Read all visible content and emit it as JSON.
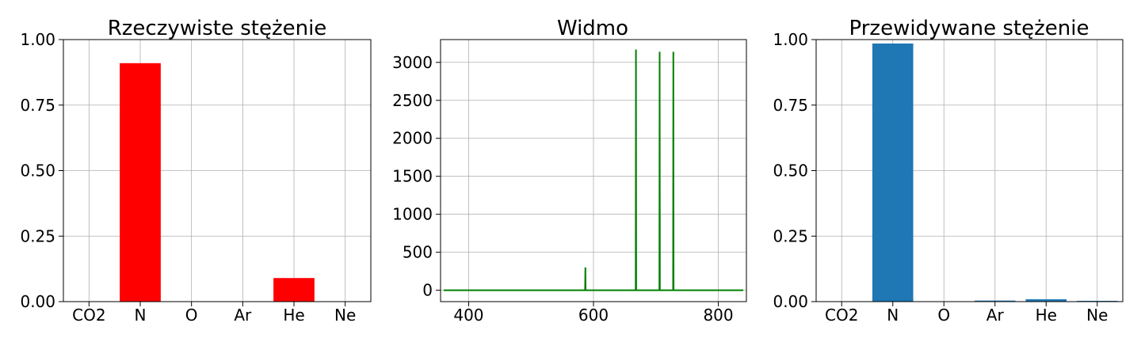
{
  "chart_data": [
    {
      "type": "bar",
      "title": "Rzeczywiste stężenie",
      "categories": [
        "CO2",
        "N",
        "O",
        "Ar",
        "He",
        "Ne"
      ],
      "values": [
        0.0,
        0.91,
        0.0,
        0.0,
        0.09,
        0.0
      ],
      "ylim": [
        0,
        1.0
      ],
      "yticks": [
        "0.00",
        "0.25",
        "0.50",
        "0.75",
        "1.00"
      ],
      "grid": true,
      "color": "#ff0000"
    },
    {
      "type": "line",
      "title": "Widmo",
      "xlim": [
        355,
        845
      ],
      "ylim": [
        -150,
        3300
      ],
      "xticks": [
        "400",
        "600",
        "800"
      ],
      "yticks": [
        "0",
        "500",
        "1000",
        "1500",
        "2000",
        "2500",
        "3000"
      ],
      "grid": true,
      "color": "#008000",
      "baseline": {
        "x_start": 360,
        "x_end": 840,
        "y": 0
      },
      "peaks": [
        {
          "x": 587,
          "y": 300
        },
        {
          "x": 668,
          "y": 3170
        },
        {
          "x": 706,
          "y": 3140
        },
        {
          "x": 728,
          "y": 3140
        }
      ]
    },
    {
      "type": "bar",
      "title": "Przewidywane stężenie",
      "categories": [
        "CO2",
        "N",
        "O",
        "Ar",
        "He",
        "Ne"
      ],
      "values": [
        0.0,
        0.985,
        0.0,
        0.004,
        0.009,
        0.003
      ],
      "ylim": [
        0,
        1.0
      ],
      "yticks": [
        "0.00",
        "0.25",
        "0.50",
        "0.75",
        "1.00"
      ],
      "grid": true,
      "color": "#1f77b4"
    }
  ]
}
